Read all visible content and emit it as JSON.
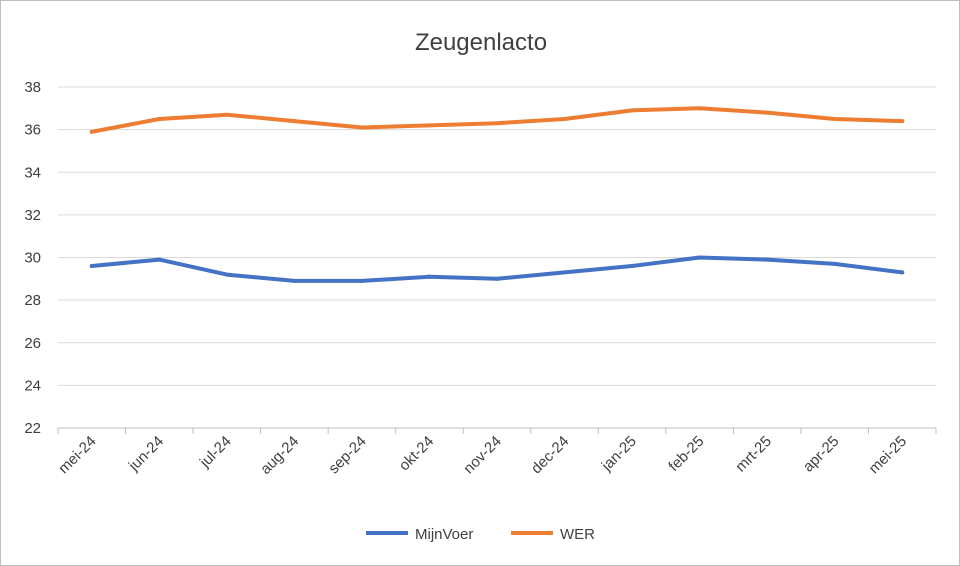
{
  "chart_data": {
    "type": "line",
    "title": "Zeugenlacto",
    "categories": [
      "mei-24",
      "jun-24",
      "jul-24",
      "aug-24",
      "sep-24",
      "okt-24",
      "nov-24",
      "dec-24",
      "jan-25",
      "feb-25",
      "mrt-25",
      "apr-25",
      "mei-25"
    ],
    "series": [
      {
        "name": "MijnVoer",
        "color": "#4472c4",
        "values": [
          29.6,
          29.9,
          29.2,
          28.9,
          28.9,
          29.1,
          29.0,
          29.3,
          29.6,
          30.0,
          29.9,
          29.7,
          29.3
        ]
      },
      {
        "name": "WER",
        "color": "#ed7d31",
        "values": [
          35.9,
          36.5,
          36.7,
          36.4,
          36.1,
          36.2,
          36.3,
          36.5,
          36.9,
          37.0,
          36.8,
          36.5,
          36.4
        ]
      }
    ],
    "ylim": [
      22,
      38
    ],
    "yticks": [
      22,
      24,
      26,
      28,
      30,
      32,
      34,
      36,
      38
    ],
    "grid": true,
    "legend": "bottom"
  }
}
